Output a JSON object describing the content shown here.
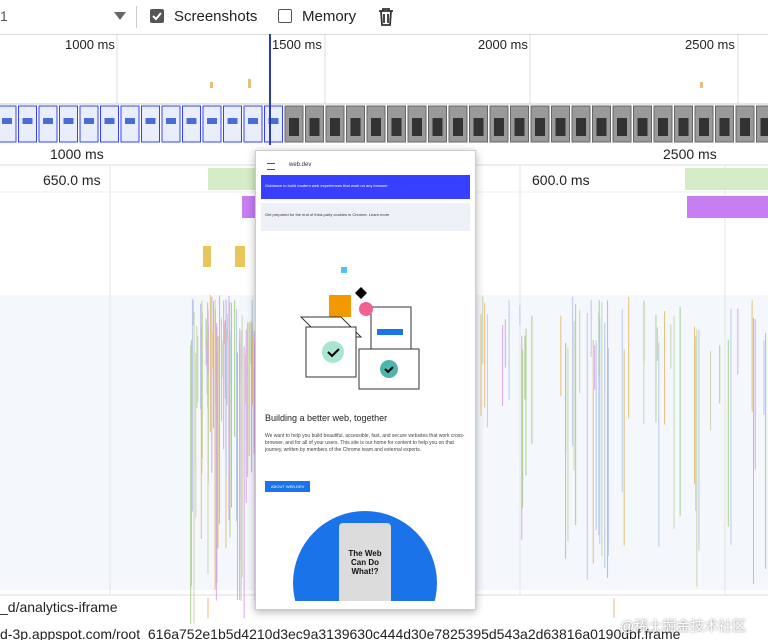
{
  "toolbar": {
    "partial_text": "1",
    "screenshots": "Screenshots",
    "screenshots_checked": true,
    "memory": "Memory",
    "memory_checked": false
  },
  "overview_ruler": [
    "1000 ms",
    "1500 ms",
    "2000 ms",
    "2500 ms"
  ],
  "timeline_ruler": [
    "1000 ms",
    "2500 ms"
  ],
  "durations": [
    "650.0 ms",
    "600.0 ms"
  ],
  "popup": {
    "site": "web.dev",
    "banner": "Guidance to build modern web experiences that work on any browser",
    "notice": "Get prepared for the end of third-party cookies in Chrome. Learn more",
    "heading": "Building a better web, together",
    "paragraph": "We want to help you build beautiful, accessible, fast, and secure websites that work cross-browser, and for all of your users. This site is our home for content to help you on that journey, written by members of the Chrome team and external experts.",
    "button": "ABOUT WEB.DEV",
    "card": "The Web Can Do What!?"
  },
  "rows": [
    "_d/analytics-iframe",
    "d-3p.appspot.com/root_616a752e1b5d4210d3ec9a3139630c444d30e7825395d543a2d63816a0190dbf.frame"
  ],
  "watermark": "@稀土掘金技术社区"
}
